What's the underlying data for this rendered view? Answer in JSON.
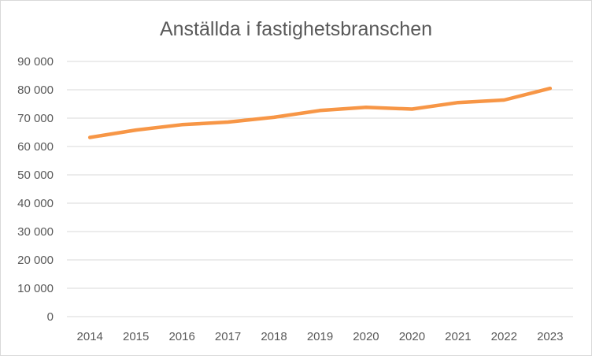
{
  "chart_data": {
    "type": "line",
    "title": "Anställda i fastighetsbranschen",
    "xlabel": "",
    "ylabel": "",
    "categories": [
      "2014",
      "2015",
      "2016",
      "2017",
      "2018",
      "2019",
      "2020",
      "2020",
      "2021",
      "2022",
      "2023"
    ],
    "series": [
      {
        "values": [
          63200,
          65800,
          67700,
          68600,
          70300,
          72700,
          73800,
          73200,
          75500,
          76400,
          80500
        ]
      }
    ],
    "ylim": [
      0,
      90000
    ],
    "yticks": [
      0,
      10000,
      20000,
      30000,
      40000,
      50000,
      60000,
      70000,
      80000,
      90000
    ],
    "ytick_labels": [
      "0",
      "10 000",
      "20 000",
      "30 000",
      "40 000",
      "50 000",
      "60 000",
      "70 000",
      "80 000",
      "90 000"
    ],
    "grid": true,
    "legend": "none",
    "colors": {
      "line": "#f79646",
      "grid": "#d9d9d9",
      "text": "#595959"
    }
  }
}
